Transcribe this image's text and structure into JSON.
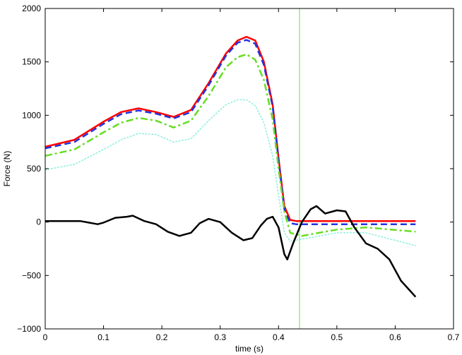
{
  "chart_data": {
    "type": "line",
    "title": "",
    "xlabel": "time (s)",
    "ylabel": "Force (N)",
    "xlim": [
      0,
      0.7
    ],
    "ylim": [
      -1000,
      2000
    ],
    "grid": false,
    "legend": "none",
    "xticks": [
      0,
      0.1,
      0.2,
      0.3,
      0.4,
      0.5,
      0.6,
      0.7
    ],
    "yticks": [
      -1000,
      -500,
      0,
      500,
      1000,
      1500,
      2000
    ],
    "xtick_labels": [
      "0",
      "0.1",
      "0.2",
      "0.3",
      "0.4",
      "0.5",
      "0.6",
      "0.7"
    ],
    "ytick_labels": [
      "−1000",
      "−500",
      "0",
      "500",
      "1000",
      "1500",
      "2000"
    ],
    "vlines": [
      {
        "x": 0.0,
        "color": "#ff0000"
      },
      {
        "x": 0.436,
        "color": "#66dd44"
      }
    ],
    "series": [
      {
        "color": "#ff0000",
        "style": "solid",
        "width": 2.5,
        "x": [
          0,
          0.05,
          0.1,
          0.13,
          0.16,
          0.19,
          0.22,
          0.25,
          0.28,
          0.31,
          0.33,
          0.345,
          0.36,
          0.375,
          0.39,
          0.4,
          0.41,
          0.42,
          0.43,
          0.5,
          0.635
        ],
        "y": [
          705,
          770,
          940,
          1030,
          1065,
          1030,
          985,
          1050,
          1300,
          1580,
          1700,
          1735,
          1700,
          1500,
          1100,
          600,
          150,
          20,
          10,
          10,
          10
        ]
      },
      {
        "color": "#2233dd",
        "style": "dashed",
        "width": 2.5,
        "x": [
          0,
          0.05,
          0.1,
          0.13,
          0.16,
          0.19,
          0.22,
          0.25,
          0.28,
          0.31,
          0.33,
          0.345,
          0.36,
          0.375,
          0.39,
          0.4,
          0.41,
          0.42,
          0.43,
          0.5,
          0.635
        ],
        "y": [
          690,
          750,
          920,
          1010,
          1045,
          1015,
          970,
          1030,
          1280,
          1560,
          1680,
          1705,
          1670,
          1470,
          1080,
          580,
          120,
          -10,
          -20,
          -20,
          -20
        ]
      },
      {
        "color": "#66dd22",
        "style": "dashdot",
        "width": 2.5,
        "x": [
          0,
          0.05,
          0.1,
          0.13,
          0.16,
          0.19,
          0.22,
          0.25,
          0.28,
          0.31,
          0.33,
          0.345,
          0.36,
          0.375,
          0.39,
          0.4,
          0.41,
          0.42,
          0.44,
          0.5,
          0.55,
          0.635
        ],
        "y": [
          620,
          680,
          840,
          930,
          975,
          950,
          885,
          950,
          1180,
          1450,
          1545,
          1570,
          1520,
          1330,
          960,
          500,
          100,
          -100,
          -130,
          -70,
          -50,
          -90
        ]
      },
      {
        "color": "#88eedd",
        "style": "dotted",
        "width": 1.5,
        "x": [
          0,
          0.05,
          0.1,
          0.13,
          0.16,
          0.19,
          0.22,
          0.25,
          0.28,
          0.31,
          0.33,
          0.345,
          0.36,
          0.375,
          0.39,
          0.4,
          0.41,
          0.42,
          0.44,
          0.5,
          0.55,
          0.635
        ],
        "y": [
          490,
          540,
          680,
          770,
          830,
          820,
          750,
          780,
          950,
          1100,
          1145,
          1145,
          1090,
          930,
          620,
          250,
          -100,
          -180,
          -160,
          -100,
          -100,
          -220
        ]
      },
      {
        "color": "#000000",
        "style": "solid",
        "width": 2.5,
        "x": [
          0,
          0.03,
          0.06,
          0.09,
          0.1,
          0.12,
          0.14,
          0.15,
          0.17,
          0.19,
          0.21,
          0.23,
          0.25,
          0.265,
          0.28,
          0.3,
          0.32,
          0.34,
          0.355,
          0.37,
          0.38,
          0.39,
          0.4,
          0.41,
          0.415,
          0.425,
          0.44,
          0.455,
          0.465,
          0.48,
          0.5,
          0.515,
          0.53,
          0.55,
          0.57,
          0.59,
          0.61,
          0.635
        ],
        "y": [
          10,
          10,
          10,
          -20,
          -5,
          40,
          50,
          60,
          10,
          -20,
          -90,
          -130,
          -100,
          -10,
          30,
          0,
          -100,
          -170,
          -150,
          -30,
          30,
          50,
          -50,
          -300,
          -350,
          -200,
          0,
          120,
          150,
          80,
          110,
          100,
          -50,
          -200,
          -250,
          -350,
          -550,
          -700
        ]
      }
    ]
  }
}
